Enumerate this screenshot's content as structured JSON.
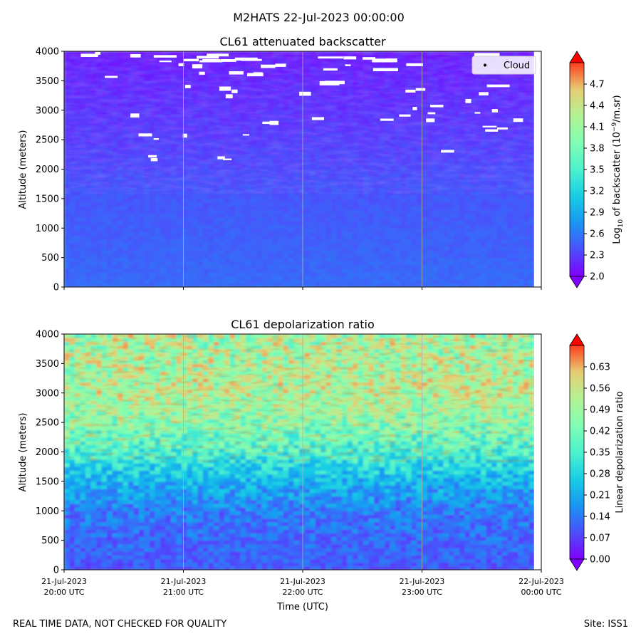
{
  "suptitle": "M2HATS 22-Jul-2023 00:00:00",
  "footer_left": "REAL TIME DATA, NOT CHECKED FOR QUALITY",
  "footer_right": "Site: ISS1",
  "chart_data": [
    {
      "type": "heatmap",
      "title": "CL61 attenuated backscatter",
      "ylabel": "Altitude (meters)",
      "xlabel": "",
      "x_ticks": [],
      "y_ticks": [
        0,
        500,
        1000,
        1500,
        2000,
        2500,
        3000,
        3500,
        4000
      ],
      "ylim": [
        0,
        4000
      ],
      "xlim": [
        "2023-07-21 20:00",
        "2023-07-22 00:00"
      ],
      "data_end": "2023-07-21 23:55",
      "grid": "vertical lines at hour ticks",
      "colormap": "rainbow",
      "colorbar": {
        "label_main": "Log",
        "label_sub": "10",
        "label_rest": " of backscatter (10",
        "label_sup": "−9",
        "label_end": "/m.sr)",
        "ticks": [
          "2.0",
          "2.3",
          "2.6",
          "2.9",
          "3.2",
          "3.5",
          "3.8",
          "4.1",
          "4.4",
          "4.7"
        ],
        "range": [
          2.0,
          5.0
        ],
        "extend": "both"
      },
      "legend": {
        "entries": [
          "Cloud"
        ],
        "placement": "upper right"
      },
      "description_values": {
        "surface": 2.5,
        "mid": 2.35,
        "upper": 2.15,
        "clear_gaps_above_m": 2100
      }
    },
    {
      "type": "heatmap",
      "title": "CL61 depolarization ratio",
      "ylabel": "Altitude (meters)",
      "xlabel": "Time (UTC)",
      "x_ticks": [
        [
          "21-Jul-2023",
          "20:00 UTC"
        ],
        [
          "21-Jul-2023",
          "21:00 UTC"
        ],
        [
          "21-Jul-2023",
          "22:00 UTC"
        ],
        [
          "21-Jul-2023",
          "23:00 UTC"
        ],
        [
          "22-Jul-2023",
          "00:00 UTC"
        ]
      ],
      "y_ticks": [
        0,
        500,
        1000,
        1500,
        2000,
        2500,
        3000,
        3500,
        4000
      ],
      "ylim": [
        0,
        4000
      ],
      "xlim": [
        "2023-07-21 20:00",
        "2023-07-22 00:00"
      ],
      "data_end": "2023-07-21 23:55",
      "grid": "vertical lines at hour ticks",
      "colormap": "rainbow",
      "colorbar": {
        "label": "Linear depolarization ratio",
        "ticks": [
          "0.00",
          "0.07",
          "0.14",
          "0.21",
          "0.28",
          "0.35",
          "0.42",
          "0.49",
          "0.56",
          "0.63"
        ],
        "range": [
          0.0,
          0.7
        ],
        "extend": "both"
      },
      "profile": [
        {
          "altitude": 0,
          "ratio": 0.1
        },
        {
          "altitude": 1000,
          "ratio": 0.14
        },
        {
          "altitude": 1500,
          "ratio": 0.22
        },
        {
          "altitude": 2000,
          "ratio": 0.35
        },
        {
          "altitude": 2500,
          "ratio": 0.45
        },
        {
          "altitude": 3000,
          "ratio": 0.52
        },
        {
          "altitude": 3500,
          "ratio": 0.5
        },
        {
          "altitude": 4000,
          "ratio": 0.5
        }
      ]
    }
  ]
}
